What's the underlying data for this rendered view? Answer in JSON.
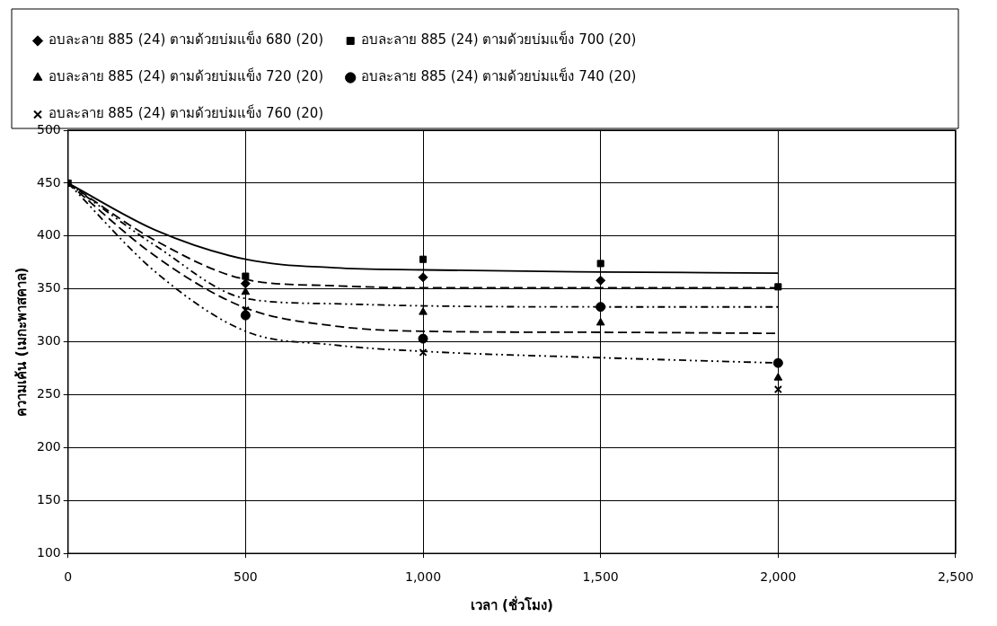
{
  "chart_data": {
    "type": "scatter",
    "xlabel": "เวลา (ชั่วโมง)",
    "ylabel": "ความเค้น (เมกะพาสคาล)",
    "x": [
      0,
      500,
      1000,
      1500,
      2000
    ],
    "series": [
      {
        "name": "อบละลาย 885 (24) ตามด้วยบ่มแข็ง 680 (20)",
        "color": "#000000",
        "marker": "diamond",
        "values": [
          null,
          355,
          361,
          358,
          null
        ]
      },
      {
        "name": "อบละลาย 885 (24) ตามด้วยบ่มแข็ง 700 (20)",
        "color": "#000000",
        "marker": "square",
        "values": [
          450,
          362,
          378,
          374,
          352
        ]
      },
      {
        "name": "อบละลาย 885 (24) ตามด้วยบ่มแข็ง 720 (20)",
        "color": "#000000",
        "marker": "triangle",
        "values": [
          null,
          347,
          328,
          318,
          266
        ]
      },
      {
        "name": "อบละลาย 885 (24) ตามด้วยบ่มแข็ง 740 (20)",
        "color": "#000000",
        "marker": "circle",
        "values": [
          null,
          325,
          303,
          333,
          280
        ]
      },
      {
        "name": "อบละลาย 885 (24) ตามด้วยบ่มแข็ง 760 (20)",
        "color": "#000000",
        "marker": "cross",
        "values": [
          null,
          330,
          290,
          null,
          255
        ]
      },
      {
        "type": "line",
        "color": "#000000",
        "line_style": "solid",
        "x": [
          0,
          250,
          500,
          750,
          1000,
          1500,
          2000
        ],
        "values": [
          450,
          405,
          378,
          370,
          368,
          366,
          365
        ]
      },
      {
        "type": "line",
        "color": "#000000",
        "line_style": "dashed",
        "x": [
          0,
          250,
          500,
          750,
          1000,
          1500,
          2000
        ],
        "values": [
          450,
          395,
          359,
          353,
          351,
          351,
          351
        ]
      },
      {
        "type": "line",
        "color": "#000000",
        "line_style": "dotted",
        "x": [
          0,
          250,
          500,
          750,
          1000,
          1500,
          2000
        ],
        "values": [
          450,
          390,
          341,
          336,
          334,
          333,
          333
        ]
      },
      {
        "type": "line",
        "color": "#000000",
        "line_style": "dashed",
        "x": [
          0,
          250,
          500,
          750,
          1000,
          1500,
          2000
        ],
        "values": [
          450,
          380,
          332,
          315,
          310,
          309,
          308
        ]
      },
      {
        "type": "line",
        "color": "#000000",
        "line_style": "dotted",
        "x": [
          0,
          250,
          500,
          750,
          1000,
          1500,
          2000
        ],
        "values": [
          450,
          365,
          310,
          297,
          291,
          285,
          280
        ]
      }
    ],
    "xlim": [
      0,
      2500
    ],
    "xticks": [
      0,
      500,
      {
        "value": 1000,
        "label": "1,000"
      },
      {
        "value": 1500,
        "label": "1,500"
      },
      {
        "value": 2000,
        "label": "2,000"
      },
      {
        "value": 2500,
        "label": "2,500"
      }
    ],
    "ylim": [
      100,
      500
    ],
    "yticks": [
      100,
      150,
      200,
      250,
      300,
      350,
      400,
      450,
      500
    ],
    "grid": true,
    "legend": "top"
  }
}
